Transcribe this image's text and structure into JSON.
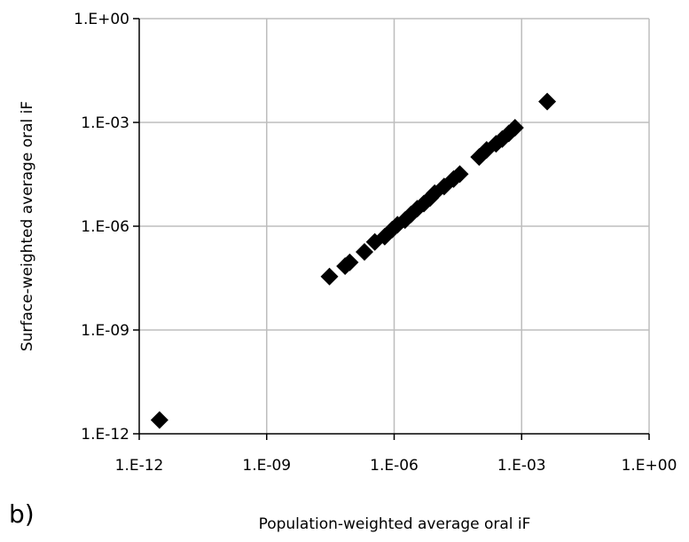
{
  "chart_data": {
    "type": "scatter",
    "title": "",
    "panel_label": "b)",
    "xlabel": "Population-weighted average oral iF",
    "ylabel": "Surface-weighted average oral iF",
    "xscale": "log",
    "yscale": "log",
    "xlim": [
      1e-12,
      1
    ],
    "ylim": [
      1e-12,
      1
    ],
    "x_tick_values": [
      1e-12,
      1e-09,
      1e-06,
      0.001,
      1
    ],
    "x_tick_labels": [
      "1.E-12",
      "1.E-09",
      "1.E-06",
      "1.E-03",
      "1.E+00"
    ],
    "y_tick_values": [
      1,
      0.001,
      1e-06,
      1e-09,
      1e-12
    ],
    "y_tick_labels": [
      "1.E+00",
      "1.E-03",
      "1.E-06",
      "1.E-09",
      "1.E-12"
    ],
    "grid": true,
    "marker": "diamond",
    "marker_color": "#000000",
    "points": [
      {
        "x": 3e-12,
        "y": 2.5e-12
      },
      {
        "x": 3e-08,
        "y": 3.5e-08
      },
      {
        "x": 7e-08,
        "y": 7e-08
      },
      {
        "x": 9e-08,
        "y": 9e-08
      },
      {
        "x": 2e-07,
        "y": 1.8e-07
      },
      {
        "x": 3.5e-07,
        "y": 3.5e-07
      },
      {
        "x": 6e-07,
        "y": 5e-07
      },
      {
        "x": 9e-07,
        "y": 8e-07
      },
      {
        "x": 1.2e-06,
        "y": 1.1e-06
      },
      {
        "x": 1.8e-06,
        "y": 1.5e-06
      },
      {
        "x": 2.5e-06,
        "y": 2.2e-06
      },
      {
        "x": 3.5e-06,
        "y": 3.2e-06
      },
      {
        "x": 5e-06,
        "y": 4.5e-06
      },
      {
        "x": 7e-06,
        "y": 6.5e-06
      },
      {
        "x": 9e-06,
        "y": 9e-06
      },
      {
        "x": 1.5e-05,
        "y": 1.4e-05
      },
      {
        "x": 2.5e-05,
        "y": 2.3e-05
      },
      {
        "x": 3.5e-05,
        "y": 3.2e-05
      },
      {
        "x": 0.0001,
        "y": 0.0001
      },
      {
        "x": 0.00015,
        "y": 0.00016
      },
      {
        "x": 0.00025,
        "y": 0.00024
      },
      {
        "x": 0.00035,
        "y": 0.00033
      },
      {
        "x": 0.0005,
        "y": 0.00048
      },
      {
        "x": 0.0007,
        "y": 0.0007
      },
      {
        "x": 0.004,
        "y": 0.004
      }
    ]
  }
}
